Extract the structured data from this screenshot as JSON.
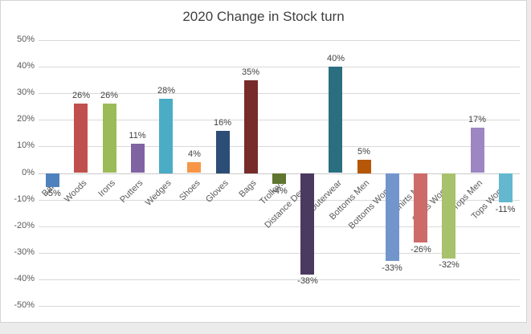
{
  "chart_data": {
    "type": "bar",
    "title": "2020 Change in Stock turn",
    "categories": [
      "Balls",
      "Woods",
      "Irons",
      "Putters",
      "Wedges",
      "Shoes",
      "Gloves",
      "Bags",
      "Trolleys",
      "Distance Device",
      "Outerwear",
      "Bottoms Men",
      "Bottoms Women",
      "Shirts Men",
      "Shirts Women",
      "Tops Men",
      "Tops Women"
    ],
    "values": [
      -5,
      26,
      26,
      11,
      28,
      4,
      16,
      35,
      -4,
      -38,
      40,
      5,
      -33,
      -26,
      -32,
      17,
      -11
    ],
    "value_labels": [
      "-5%",
      "26%",
      "26%",
      "11%",
      "28%",
      "4%",
      "16%",
      "35%",
      "-4%",
      "-38%",
      "40%",
      "5%",
      "-33%",
      "-26%",
      "-32%",
      "17%",
      "-11%"
    ],
    "bar_colors": [
      "#4F81BD",
      "#C0504D",
      "#9BBB59",
      "#8064A2",
      "#4BACC6",
      "#F79646",
      "#2C4D75",
      "#772C2A",
      "#5F7530",
      "#4A3A5F",
      "#2A6E80",
      "#B65708",
      "#7296CC",
      "#CC6B68",
      "#A7C16D",
      "#9D86C1",
      "#63B8CF"
    ],
    "y_axis": {
      "tick_labels": [
        "50%",
        "40%",
        "30%",
        "20%",
        "10%",
        "0%",
        "-10%",
        "-20%",
        "-30%",
        "-40%",
        "-50%"
      ],
      "max": 50,
      "min": -50,
      "step": 10
    },
    "grid": true,
    "legend": "none"
  },
  "style": {
    "title_color": "#404040",
    "axis_text_color": "#595959",
    "data_label_color": "#404040",
    "grid_color": "#D9D9D9",
    "zero_line_color": "#CBCBCB",
    "chart_border_color": "#D4D4D4",
    "chart_bg": "#FFFFFF",
    "page_bg": "#EBEBEB"
  }
}
